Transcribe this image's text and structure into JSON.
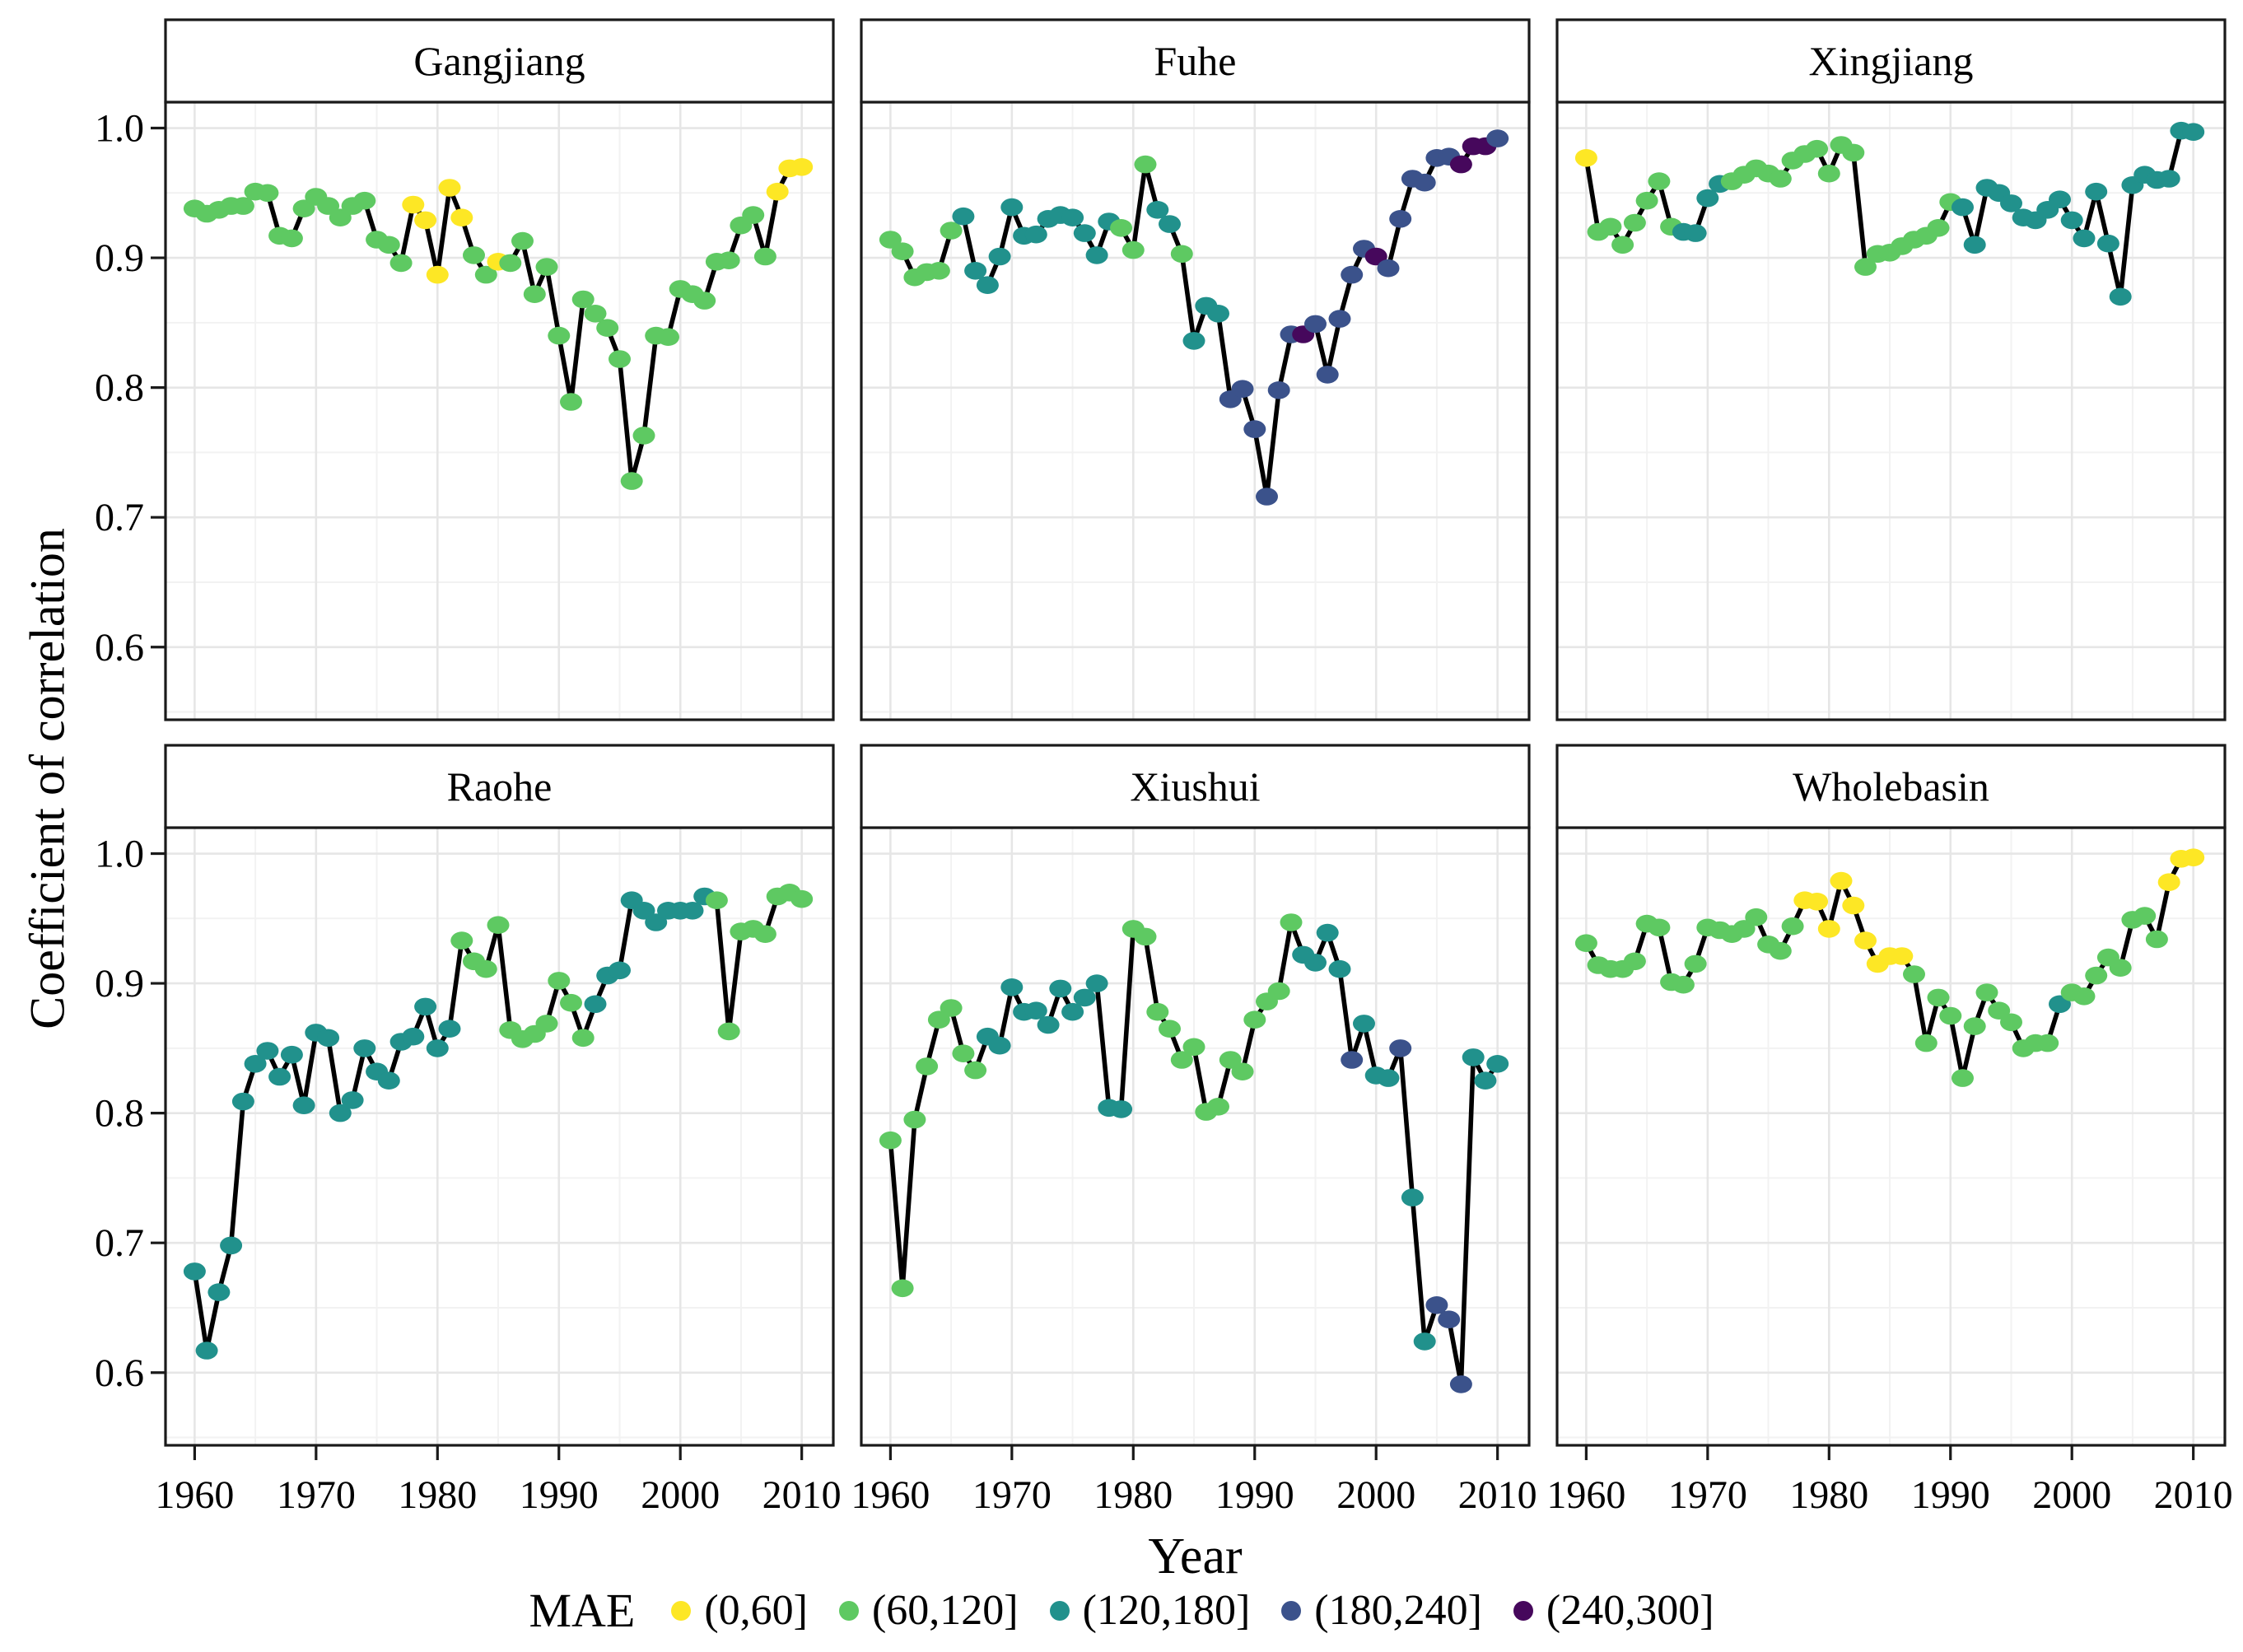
{
  "figure": {
    "y_axis_title": "Coefficient of correlation",
    "x_axis_title": "Year",
    "legend": {
      "title": "MAE",
      "items": [
        {
          "label": "(0,60]",
          "color": "#FDE725"
        },
        {
          "label": "(60,120]",
          "color": "#5EC962"
        },
        {
          "label": "(120,180]",
          "color": "#21918C"
        },
        {
          "label": "(180,240]",
          "color": "#3B528B"
        },
        {
          "label": "(240,300]",
          "color": "#46085C"
        }
      ]
    }
  },
  "chart_data": {
    "type": "line",
    "title": "",
    "xlabel": "Year",
    "ylabel": "Coefficient of correlation",
    "grid": true,
    "legend_position": "bottom",
    "years": {
      "start": 1960,
      "end": 2010,
      "step": 1
    },
    "xlim": [
      1957.6,
      2012.6
    ],
    "ylim": [
      0.544,
      1.02
    ],
    "x_ticks": [
      1960,
      1970,
      1980,
      1990,
      2000,
      2010
    ],
    "x_minor_ticks": [
      1965,
      1975,
      1985,
      1995,
      2005
    ],
    "y_ticks": [
      1.0,
      0.9,
      0.8,
      0.7,
      0.6
    ],
    "y_tick_labels": [
      "1.0",
      "0.9",
      "0.8",
      "0.7",
      "0.6"
    ],
    "y_minor_ticks": [
      0.95,
      0.85,
      0.75,
      0.65,
      0.55
    ],
    "bin_labels": [
      "(0,60]",
      "(60,120]",
      "(120,180]",
      "(180,240]",
      "(240,300]"
    ],
    "bin_colors": [
      "#FDE725",
      "#5EC962",
      "#21918C",
      "#3B528B",
      "#46085C"
    ],
    "facets": [
      {
        "name": "Gangjiang",
        "values": [
          0.938,
          0.934,
          0.937,
          0.94,
          0.94,
          0.951,
          0.95,
          0.917,
          0.915,
          0.938,
          0.947,
          0.94,
          0.931,
          0.94,
          0.944,
          0.914,
          0.91,
          0.896,
          0.941,
          0.929,
          0.887,
          0.954,
          0.931,
          0.902,
          0.887,
          0.897,
          0.896,
          0.913,
          0.872,
          0.893,
          0.84,
          0.789,
          0.868,
          0.857,
          0.846,
          0.822,
          0.728,
          0.763,
          0.84,
          0.839,
          0.876,
          0.872,
          0.867,
          0.897,
          0.898,
          0.925,
          0.933,
          0.901,
          0.951,
          0.969,
          0.97
        ],
        "mae_bins": [
          1,
          1,
          1,
          1,
          1,
          1,
          1,
          1,
          1,
          1,
          1,
          1,
          1,
          1,
          1,
          1,
          1,
          1,
          0,
          0,
          0,
          0,
          0,
          1,
          1,
          0,
          1,
          1,
          1,
          1,
          1,
          1,
          1,
          1,
          1,
          1,
          1,
          1,
          1,
          1,
          1,
          1,
          1,
          1,
          1,
          1,
          1,
          1,
          0,
          0,
          0
        ]
      },
      {
        "name": "Fuhe",
        "values": [
          0.914,
          0.905,
          0.885,
          0.889,
          0.89,
          0.921,
          0.932,
          0.89,
          0.879,
          0.901,
          0.939,
          0.917,
          0.918,
          0.93,
          0.933,
          0.931,
          0.919,
          0.902,
          0.928,
          0.923,
          0.906,
          0.972,
          0.937,
          0.926,
          0.903,
          0.836,
          0.863,
          0.857,
          0.791,
          0.799,
          0.768,
          0.716,
          0.798,
          0.841,
          0.841,
          0.849,
          0.81,
          0.853,
          0.887,
          0.907,
          0.901,
          0.892,
          0.93,
          0.961,
          0.958,
          0.977,
          0.978,
          0.972,
          0.986,
          0.986,
          0.992
        ],
        "mae_bins": [
          1,
          1,
          1,
          1,
          1,
          1,
          2,
          2,
          2,
          2,
          2,
          2,
          2,
          2,
          2,
          2,
          2,
          2,
          2,
          1,
          1,
          1,
          2,
          2,
          1,
          2,
          2,
          2,
          3,
          3,
          3,
          3,
          3,
          3,
          4,
          3,
          3,
          3,
          3,
          3,
          4,
          3,
          3,
          3,
          3,
          3,
          3,
          4,
          4,
          4,
          3
        ]
      },
      {
        "name": "Xingjiang",
        "values": [
          0.977,
          0.92,
          0.924,
          0.91,
          0.927,
          0.944,
          0.959,
          0.924,
          0.92,
          0.919,
          0.946,
          0.957,
          0.959,
          0.964,
          0.969,
          0.965,
          0.961,
          0.975,
          0.98,
          0.984,
          0.965,
          0.987,
          0.981,
          0.893,
          0.903,
          0.904,
          0.909,
          0.914,
          0.917,
          0.923,
          0.943,
          0.939,
          0.91,
          0.954,
          0.95,
          0.942,
          0.931,
          0.929,
          0.937,
          0.945,
          0.929,
          0.915,
          0.951,
          0.911,
          0.87,
          0.956,
          0.964,
          0.96,
          0.961,
          0.998,
          0.997
        ],
        "mae_bins": [
          0,
          1,
          1,
          1,
          1,
          1,
          1,
          1,
          2,
          2,
          2,
          2,
          1,
          1,
          1,
          1,
          1,
          1,
          1,
          1,
          1,
          1,
          1,
          1,
          1,
          1,
          1,
          1,
          1,
          1,
          1,
          2,
          2,
          2,
          2,
          2,
          2,
          2,
          2,
          2,
          2,
          2,
          2,
          2,
          2,
          2,
          2,
          2,
          2,
          2,
          2
        ]
      },
      {
        "name": "Raohe",
        "values": [
          0.678,
          0.617,
          0.662,
          0.698,
          0.809,
          0.838,
          0.848,
          0.828,
          0.845,
          0.806,
          0.862,
          0.858,
          0.8,
          0.81,
          0.85,
          0.832,
          0.825,
          0.855,
          0.859,
          0.882,
          0.85,
          0.865,
          0.933,
          0.917,
          0.911,
          0.945,
          0.864,
          0.857,
          0.861,
          0.869,
          0.902,
          0.885,
          0.858,
          0.884,
          0.906,
          0.91,
          0.964,
          0.956,
          0.947,
          0.956,
          0.956,
          0.956,
          0.967,
          0.964,
          0.863,
          0.94,
          0.942,
          0.938,
          0.967,
          0.97,
          0.965
        ],
        "mae_bins": [
          2,
          2,
          2,
          2,
          2,
          2,
          2,
          2,
          2,
          2,
          2,
          2,
          2,
          2,
          2,
          2,
          2,
          2,
          2,
          2,
          2,
          2,
          1,
          1,
          1,
          1,
          1,
          1,
          1,
          1,
          1,
          1,
          1,
          2,
          2,
          2,
          2,
          2,
          2,
          2,
          2,
          2,
          2,
          1,
          1,
          1,
          1,
          1,
          1,
          1,
          1
        ]
      },
      {
        "name": "Xiushui",
        "values": [
          0.779,
          0.665,
          0.795,
          0.836,
          0.872,
          0.881,
          0.846,
          0.833,
          0.859,
          0.852,
          0.897,
          0.878,
          0.879,
          0.868,
          0.896,
          0.878,
          0.889,
          0.9,
          0.804,
          0.803,
          0.942,
          0.936,
          0.878,
          0.865,
          0.841,
          0.851,
          0.801,
          0.805,
          0.841,
          0.832,
          0.872,
          0.886,
          0.894,
          0.947,
          0.922,
          0.916,
          0.939,
          0.911,
          0.841,
          0.869,
          0.829,
          0.827,
          0.85,
          0.735,
          0.624,
          0.652,
          0.641,
          0.591,
          0.843,
          0.825,
          0.838
        ],
        "mae_bins": [
          1,
          1,
          1,
          1,
          1,
          1,
          1,
          1,
          2,
          2,
          2,
          2,
          2,
          2,
          2,
          2,
          2,
          2,
          2,
          2,
          1,
          1,
          1,
          1,
          1,
          1,
          1,
          1,
          1,
          1,
          1,
          1,
          1,
          1,
          2,
          2,
          2,
          2,
          3,
          2,
          2,
          2,
          3,
          2,
          2,
          3,
          3,
          3,
          2,
          2,
          2
        ]
      },
      {
        "name": "Wholebasin",
        "values": [
          0.931,
          0.914,
          0.911,
          0.911,
          0.917,
          0.946,
          0.943,
          0.901,
          0.899,
          0.915,
          0.943,
          0.941,
          0.938,
          0.942,
          0.951,
          0.93,
          0.925,
          0.944,
          0.964,
          0.963,
          0.942,
          0.979,
          0.96,
          0.933,
          0.915,
          0.921,
          0.921,
          0.907,
          0.854,
          0.889,
          0.875,
          0.827,
          0.867,
          0.893,
          0.879,
          0.87,
          0.85,
          0.854,
          0.854,
          0.884,
          0.893,
          0.89,
          0.906,
          0.92,
          0.912,
          0.949,
          0.952,
          0.934,
          0.978,
          0.996,
          0.997
        ],
        "mae_bins": [
          1,
          1,
          1,
          1,
          1,
          1,
          1,
          1,
          1,
          1,
          1,
          1,
          1,
          1,
          1,
          1,
          1,
          1,
          0,
          0,
          0,
          0,
          0,
          0,
          0,
          0,
          0,
          1,
          1,
          1,
          1,
          1,
          1,
          1,
          1,
          1,
          1,
          1,
          1,
          2,
          1,
          1,
          1,
          1,
          1,
          1,
          1,
          1,
          0,
          0,
          0
        ]
      }
    ]
  }
}
